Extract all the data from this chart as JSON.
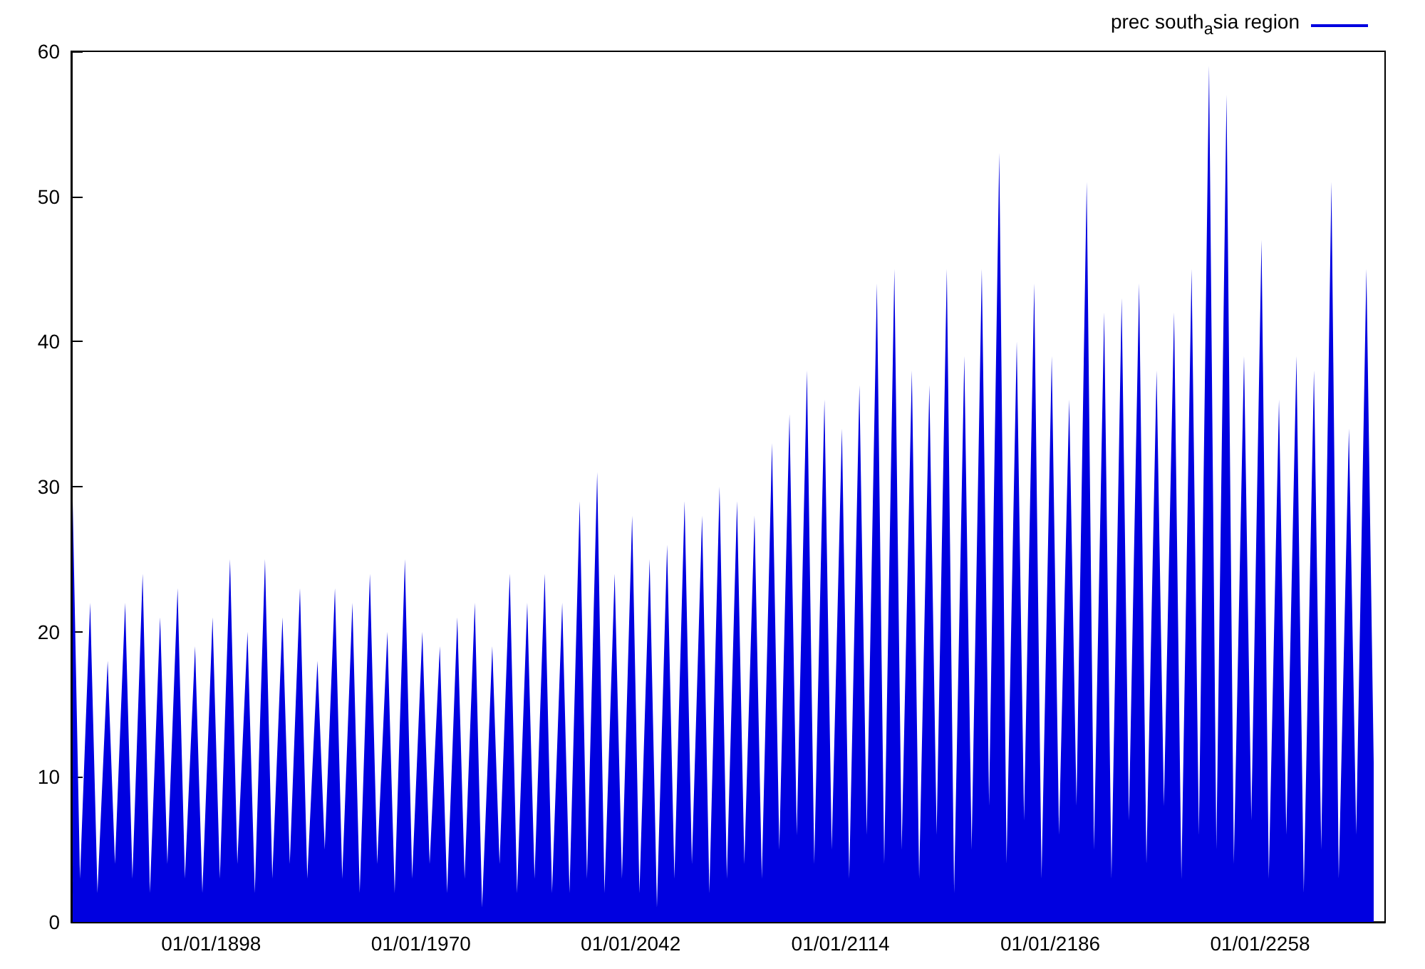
{
  "chart_data": {
    "type": "area",
    "x": [
      "1850-07",
      "1853-01",
      "1856-07",
      "1859-01",
      "1862-07",
      "1865-01",
      "1868-07",
      "1871-01",
      "1874-07",
      "1877-01",
      "1880-07",
      "1883-01",
      "1886-07",
      "1889-01",
      "1892-07",
      "1895-01",
      "1898-07",
      "1901-01",
      "1904-07",
      "1907-01",
      "1910-07",
      "1913-01",
      "1916-07",
      "1919-01",
      "1922-07",
      "1925-01",
      "1928-07",
      "1931-01",
      "1934-07",
      "1937-01",
      "1940-07",
      "1943-01",
      "1946-07",
      "1949-01",
      "1952-07",
      "1955-01",
      "1958-07",
      "1961-01",
      "1964-07",
      "1967-01",
      "1970-07",
      "1973-01",
      "1976-07",
      "1979-01",
      "1982-07",
      "1985-01",
      "1988-07",
      "1991-01",
      "1994-07",
      "1997-01",
      "2000-07",
      "2003-01",
      "2006-07",
      "2009-01",
      "2012-07",
      "2015-01",
      "2018-07",
      "2021-01",
      "2024-07",
      "2027-01",
      "2030-07",
      "2033-01",
      "2036-07",
      "2039-01",
      "2042-07",
      "2045-01",
      "2048-07",
      "2051-01",
      "2054-07",
      "2057-01",
      "2060-07",
      "2063-01",
      "2066-07",
      "2069-01",
      "2072-07",
      "2075-01",
      "2078-07",
      "2081-01",
      "2084-07",
      "2087-01",
      "2090-07",
      "2093-01",
      "2096-07",
      "2099-01",
      "2102-07",
      "2105-01",
      "2108-07",
      "2111-01",
      "2114-07",
      "2117-01",
      "2120-07",
      "2123-01",
      "2126-07",
      "2129-01",
      "2132-07",
      "2135-01",
      "2138-07",
      "2141-01",
      "2144-07",
      "2147-01",
      "2150-07",
      "2153-01",
      "2156-07",
      "2159-01",
      "2162-07",
      "2165-01",
      "2168-07",
      "2171-01",
      "2174-07",
      "2177-01",
      "2180-07",
      "2183-01",
      "2186-07",
      "2189-01",
      "2192-07",
      "2195-01",
      "2198-07",
      "2201-01",
      "2204-07",
      "2207-01",
      "2210-07",
      "2213-01",
      "2216-07",
      "2219-01",
      "2222-07",
      "2225-01",
      "2228-07",
      "2231-01",
      "2234-07",
      "2237-01",
      "2240-07",
      "2243-01",
      "2246-07",
      "2249-01",
      "2252-07",
      "2255-01",
      "2258-07",
      "2261-01",
      "2264-07",
      "2267-01",
      "2270-07",
      "2273-01",
      "2276-07",
      "2279-01",
      "2282-07",
      "2285-01",
      "2288-07",
      "2291-01",
      "2294-07",
      "2297-01"
    ],
    "series": [
      {
        "name": "prec south$_{a}$sia region",
        "color": "#0000e0",
        "values": [
          29,
          3,
          22,
          2,
          18,
          4,
          22,
          3,
          24,
          2,
          21,
          4,
          23,
          3,
          19,
          2,
          21,
          3,
          25,
          4,
          20,
          2,
          25,
          3,
          21,
          4,
          23,
          3,
          18,
          5,
          23,
          3,
          22,
          2,
          24,
          4,
          20,
          2,
          25,
          3,
          20,
          4,
          19,
          2,
          21,
          3,
          22,
          1,
          19,
          4,
          24,
          2,
          22,
          3,
          24,
          2,
          22,
          2,
          29,
          3,
          31,
          2,
          24,
          3,
          28,
          2,
          25,
          1,
          26,
          3,
          29,
          4,
          28,
          2,
          30,
          3,
          29,
          4,
          28,
          3,
          33,
          5,
          35,
          6,
          38,
          4,
          36,
          5,
          34,
          3,
          37,
          6,
          44,
          4,
          45,
          5,
          38,
          3,
          37,
          6,
          45,
          2,
          39,
          5,
          45,
          8,
          53,
          4,
          40,
          7,
          44,
          3,
          39,
          6,
          36,
          8,
          51,
          5,
          42,
          3,
          43,
          7,
          44,
          4,
          38,
          8,
          42,
          3,
          45,
          6,
          59,
          5,
          57,
          4,
          39,
          7,
          47,
          3,
          36,
          6,
          39,
          2,
          38,
          5,
          51,
          3,
          34,
          6,
          45,
          11
        ]
      }
    ],
    "xlim": [
      "1850-01",
      "2300-12"
    ],
    "xticks": [
      {
        "value": "1898-01-01",
        "label": "01/01/1898"
      },
      {
        "value": "1970-01-01",
        "label": "01/01/1970"
      },
      {
        "value": "2042-01-01",
        "label": "01/01/2042"
      },
      {
        "value": "2114-01-01",
        "label": "01/01/2114"
      },
      {
        "value": "2186-01-01",
        "label": "01/01/2186"
      },
      {
        "value": "2258-01-01",
        "label": "01/01/2258"
      }
    ],
    "ylim": [
      0,
      60
    ],
    "yticks": [
      0,
      10,
      20,
      30,
      40,
      50,
      60
    ],
    "grid": false,
    "legend": "top right",
    "marker": "none"
  }
}
